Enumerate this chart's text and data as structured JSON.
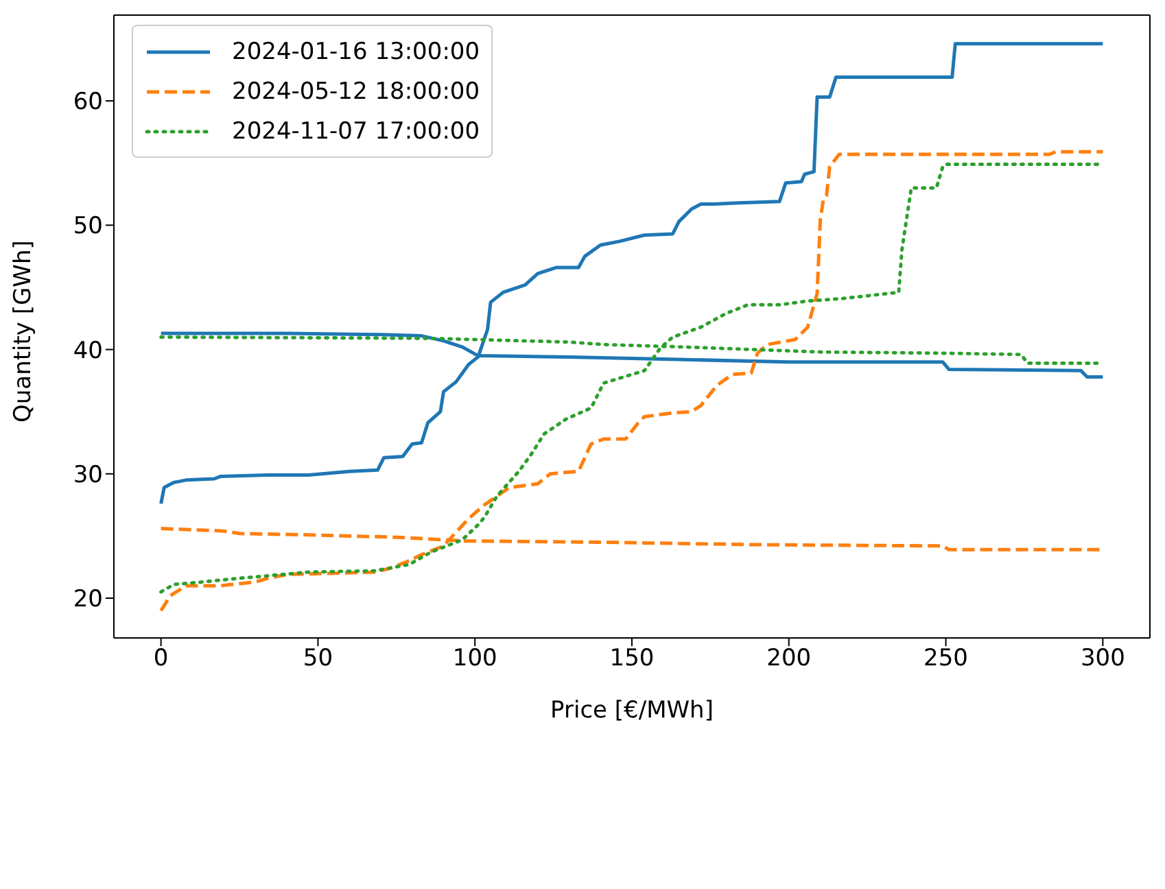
{
  "chart_data": {
    "type": "line",
    "xlabel": "Price [€/MWh]",
    "ylabel": "Quantity [GWh]",
    "xlim": [
      -15,
      315
    ],
    "xticks": [
      0,
      50,
      100,
      150,
      200,
      250,
      300
    ],
    "ylim": [
      16.8,
      66.9
    ],
    "yticks": [
      20,
      30,
      40,
      50,
      60
    ],
    "legend": "top left",
    "grid": false,
    "series": [
      {
        "name": "2024-01-16 13:00:00",
        "color": "#1f77b4",
        "line_style": "solid",
        "x": [
          0,
          1,
          4,
          8,
          17,
          19,
          34,
          47,
          60,
          69,
          71,
          77,
          80,
          83,
          85,
          89,
          90,
          94,
          98,
          101,
          104,
          105,
          109,
          116,
          120,
          126,
          133,
          135,
          140,
          146,
          154,
          163,
          165,
          169,
          172,
          176,
          184,
          197,
          199,
          204,
          205,
          208,
          209,
          213,
          215,
          252,
          253,
          300
        ],
        "values": [
          27.6,
          28.9,
          29.3,
          29.5,
          29.6,
          29.8,
          29.9,
          29.9,
          30.2,
          30.3,
          31.3,
          31.4,
          32.4,
          32.5,
          34.1,
          35,
          36.6,
          37.4,
          38.8,
          39.4,
          41.6,
          43.8,
          44.6,
          45.2,
          46.1,
          46.6,
          46.6,
          47.5,
          48.4,
          48.7,
          49.2,
          49.3,
          50.3,
          51.3,
          51.7,
          51.7,
          51.8,
          51.9,
          53.4,
          53.5,
          54.1,
          54.3,
          60.3,
          60.3,
          61.9,
          61.9,
          64.6,
          64.6
        ]
      },
      {
        "color": "#1f77b4",
        "line_style": "solid",
        "x": [
          0,
          40,
          70,
          83,
          90,
          96,
          101,
          130,
          165,
          200,
          249,
          251,
          293,
          295,
          300
        ],
        "values": [
          41.3,
          41.3,
          41.2,
          41.1,
          40.7,
          40.2,
          39.5,
          39.4,
          39.2,
          39.0,
          39.0,
          38.4,
          38.3,
          37.8,
          37.8
        ]
      },
      {
        "name": "2024-05-12 18:00:00",
        "color": "#ff7f0e",
        "line_style": "dashed",
        "x": [
          0,
          3,
          8,
          19,
          30,
          34,
          40,
          68,
          73,
          79,
          83,
          90,
          94,
          98,
          103,
          111,
          120,
          124,
          133,
          137,
          141,
          148,
          152,
          154,
          163,
          169,
          172,
          177,
          182,
          188,
          190,
          193,
          202,
          206,
          209,
          210,
          211,
          212,
          213,
          216,
          283,
          285,
          300
        ],
        "values": [
          19.0,
          20.2,
          21.0,
          21.0,
          21.3,
          21.6,
          21.9,
          22.1,
          22.4,
          23.0,
          23.5,
          24.2,
          25.3,
          26.4,
          27.5,
          28.9,
          29.2,
          30.0,
          30.2,
          32.4,
          32.8,
          32.8,
          34.1,
          34.6,
          34.9,
          35.0,
          35.5,
          37.1,
          38.0,
          38.1,
          39.7,
          40.4,
          40.8,
          41.8,
          44.5,
          50.4,
          52.1,
          52.4,
          54.7,
          55.7,
          55.7,
          55.9,
          55.9
        ]
      },
      {
        "color": "#ff7f0e",
        "line_style": "dashed",
        "x": [
          0,
          20,
          25,
          45,
          75,
          97,
          140,
          190,
          249,
          251,
          300
        ],
        "values": [
          25.6,
          25.4,
          25.2,
          25.1,
          24.9,
          24.6,
          24.5,
          24.3,
          24.2,
          23.9,
          23.9
        ]
      },
      {
        "name": "2024-11-07 17:00:00",
        "color": "#2ca02c",
        "line_style": "dotted",
        "x": [
          0,
          4,
          13,
          25,
          34,
          47,
          68,
          79,
          86,
          96,
          101,
          103,
          107,
          114,
          118,
          122,
          129,
          137,
          141,
          154,
          159,
          163,
          172,
          180,
          187,
          197,
          206,
          217,
          235,
          236,
          239,
          247,
          249,
          250,
          300
        ],
        "values": [
          20.5,
          21.1,
          21.3,
          21.6,
          21.8,
          22.1,
          22.2,
          22.7,
          23.7,
          24.7,
          25.9,
          26.5,
          28.2,
          30.2,
          31.6,
          33.2,
          34.4,
          35.3,
          37.3,
          38.3,
          40.1,
          41.0,
          41.8,
          42.9,
          43.6,
          43.6,
          43.9,
          44.1,
          44.6,
          48.0,
          53.0,
          53.0,
          54.7,
          54.9,
          54.9
        ]
      },
      {
        "color": "#2ca02c",
        "line_style": "dotted",
        "x": [
          0,
          85,
          100,
          130,
          141,
          167,
          210,
          250,
          274,
          276,
          300
        ],
        "values": [
          41.0,
          40.9,
          40.8,
          40.6,
          40.4,
          40.2,
          39.8,
          39.7,
          39.6,
          38.9,
          38.9
        ]
      }
    ]
  }
}
